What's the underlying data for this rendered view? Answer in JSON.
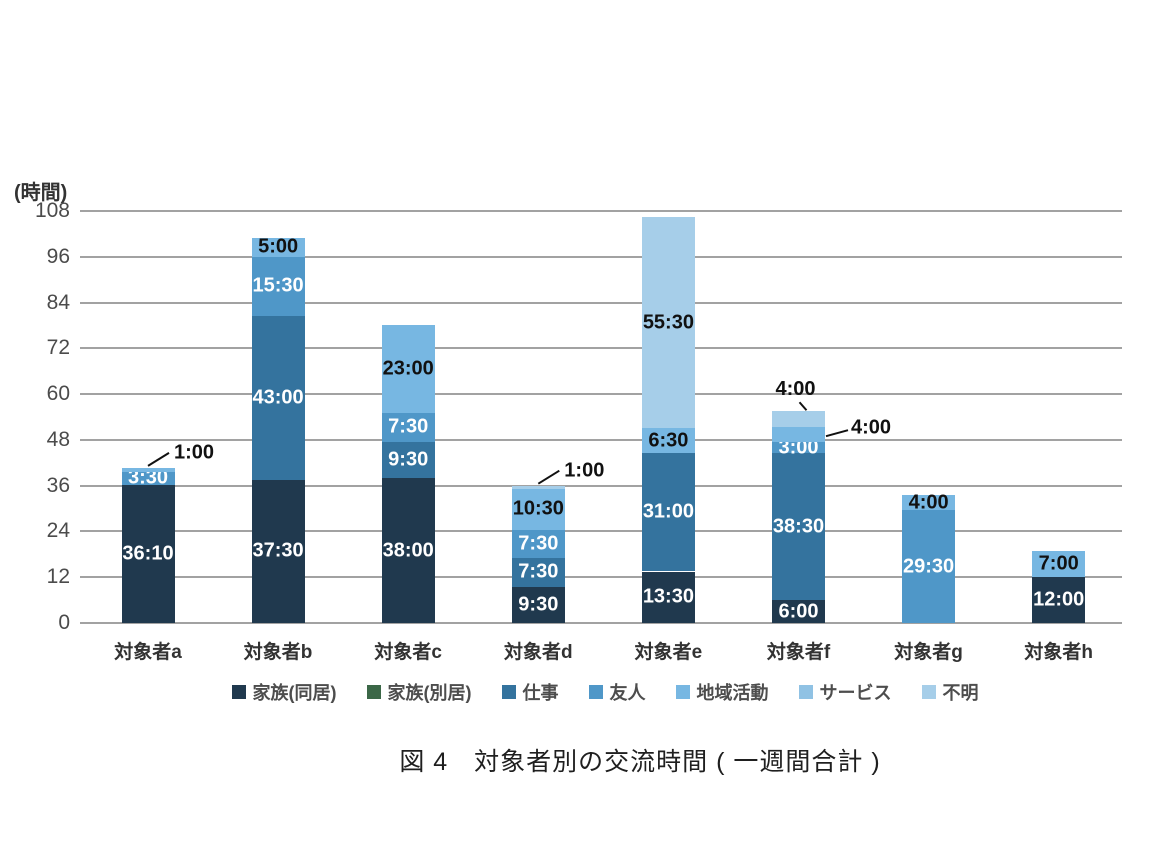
{
  "figure": {
    "caption": "図 4　対象者別の交流時間 ( 一週間合計 )",
    "unit_label": "(時間)"
  },
  "chart_data": {
    "type": "bar",
    "stacked": true,
    "title": "図 4　対象者別の交流時間 ( 一週間合計 )",
    "ylabel": "(時間)",
    "xlabel": "",
    "ylim": [
      0,
      108
    ],
    "y_ticks": [
      0,
      12,
      24,
      36,
      48,
      60,
      72,
      84,
      96,
      108
    ],
    "grid": true,
    "legend_position": "bottom",
    "legend": [
      {
        "name": "家族(同居)",
        "color": "#20394e"
      },
      {
        "name": "家族(別居)",
        "color": "#3b6747"
      },
      {
        "name": "仕事",
        "color": "#34739e"
      },
      {
        "name": "友人",
        "color": "#4f97c8"
      },
      {
        "name": "地域活動",
        "color": "#77b7e2"
      },
      {
        "name": "サービス",
        "color": "#90c2e4"
      },
      {
        "name": "不明",
        "color": "#a6cee9"
      }
    ],
    "categories": [
      "対象者a",
      "対象者b",
      "対象者c",
      "対象者d",
      "対象者e",
      "対象者f",
      "対象者g",
      "対象者h"
    ],
    "bars": [
      {
        "category": "対象者a",
        "segments": [
          {
            "series": "家族(同居)",
            "label": "36:10",
            "hours": 36.167,
            "label_style": "inline-white"
          },
          {
            "series": "友人",
            "label": "3:30",
            "hours": 3.5,
            "label_style": "inline-white"
          },
          {
            "series": "地域活動",
            "label": "1:00",
            "hours": 1.0,
            "label_style": "callout",
            "callout_side": "top-right"
          }
        ]
      },
      {
        "category": "対象者b",
        "segments": [
          {
            "series": "家族(同居)",
            "label": "37:30",
            "hours": 37.5,
            "label_style": "inline-white"
          },
          {
            "series": "仕事",
            "label": "43:00",
            "hours": 43.0,
            "label_style": "inline-white"
          },
          {
            "series": "友人",
            "label": "15:30",
            "hours": 15.5,
            "label_style": "inline-white"
          },
          {
            "series": "地域活動",
            "label": "5:00",
            "hours": 5.0,
            "label_style": "inline-black"
          }
        ]
      },
      {
        "category": "対象者c",
        "segments": [
          {
            "series": "家族(同居)",
            "label": "38:00",
            "hours": 38.0,
            "label_style": "inline-white"
          },
          {
            "series": "仕事",
            "label": "9:30",
            "hours": 9.5,
            "label_style": "inline-white"
          },
          {
            "series": "友人",
            "label": "7:30",
            "hours": 7.5,
            "label_style": "inline-white"
          },
          {
            "series": "地域活動",
            "label": "23:00",
            "hours": 23.0,
            "label_style": "inline-black"
          }
        ]
      },
      {
        "category": "対象者d",
        "segments": [
          {
            "series": "家族(同居)",
            "label": "9:30",
            "hours": 9.5,
            "label_style": "inline-white"
          },
          {
            "series": "仕事",
            "label": "7:30",
            "hours": 7.5,
            "label_style": "inline-white"
          },
          {
            "series": "友人",
            "label": "7:30",
            "hours": 7.5,
            "label_style": "inline-white"
          },
          {
            "series": "地域活動",
            "label": "10:30",
            "hours": 10.5,
            "label_style": "inline-black"
          },
          {
            "series": "不明",
            "label": "1:00",
            "hours": 1.0,
            "label_style": "callout",
            "callout_side": "top-right"
          }
        ]
      },
      {
        "category": "対象者e",
        "segments": [
          {
            "series": "家族(同居)",
            "label": "13:30",
            "hours": 13.5,
            "label_style": "inline-white"
          },
          {
            "series": "仕事",
            "label": "31:00",
            "hours": 31.0,
            "label_style": "inline-white"
          },
          {
            "series": "地域活動",
            "label": "6:30",
            "hours": 6.5,
            "label_style": "inline-black"
          },
          {
            "series": "不明",
            "label": "55:30",
            "hours": 55.5,
            "label_style": "inline-black"
          }
        ]
      },
      {
        "category": "対象者f",
        "segments": [
          {
            "series": "家族(同居)",
            "label": "6:00",
            "hours": 6.0,
            "label_style": "inline-white"
          },
          {
            "series": "仕事",
            "label": "38:30",
            "hours": 38.5,
            "label_style": "inline-white"
          },
          {
            "series": "友人",
            "label": "3:00",
            "hours": 3.0,
            "label_style": "inline-white"
          },
          {
            "series": "地域活動",
            "label": "4:00",
            "hours": 4.0,
            "label_style": "callout",
            "callout_side": "right"
          },
          {
            "series": "不明",
            "label": "4:00",
            "hours": 4.0,
            "label_style": "callout",
            "callout_side": "top-left"
          }
        ]
      },
      {
        "category": "対象者g",
        "segments": [
          {
            "series": "友人",
            "label": "29:30",
            "hours": 29.5,
            "label_style": "inline-white"
          },
          {
            "series": "地域活動",
            "label": "4:00",
            "hours": 4.0,
            "label_style": "inline-black"
          }
        ]
      },
      {
        "category": "対象者h",
        "segments": [
          {
            "series": "家族(同居)",
            "label": "12:00",
            "hours": 12.0,
            "label_style": "inline-white"
          },
          {
            "series": "地域活動",
            "label": "7:00",
            "hours": 7.0,
            "label_style": "inline-black"
          }
        ]
      }
    ]
  }
}
